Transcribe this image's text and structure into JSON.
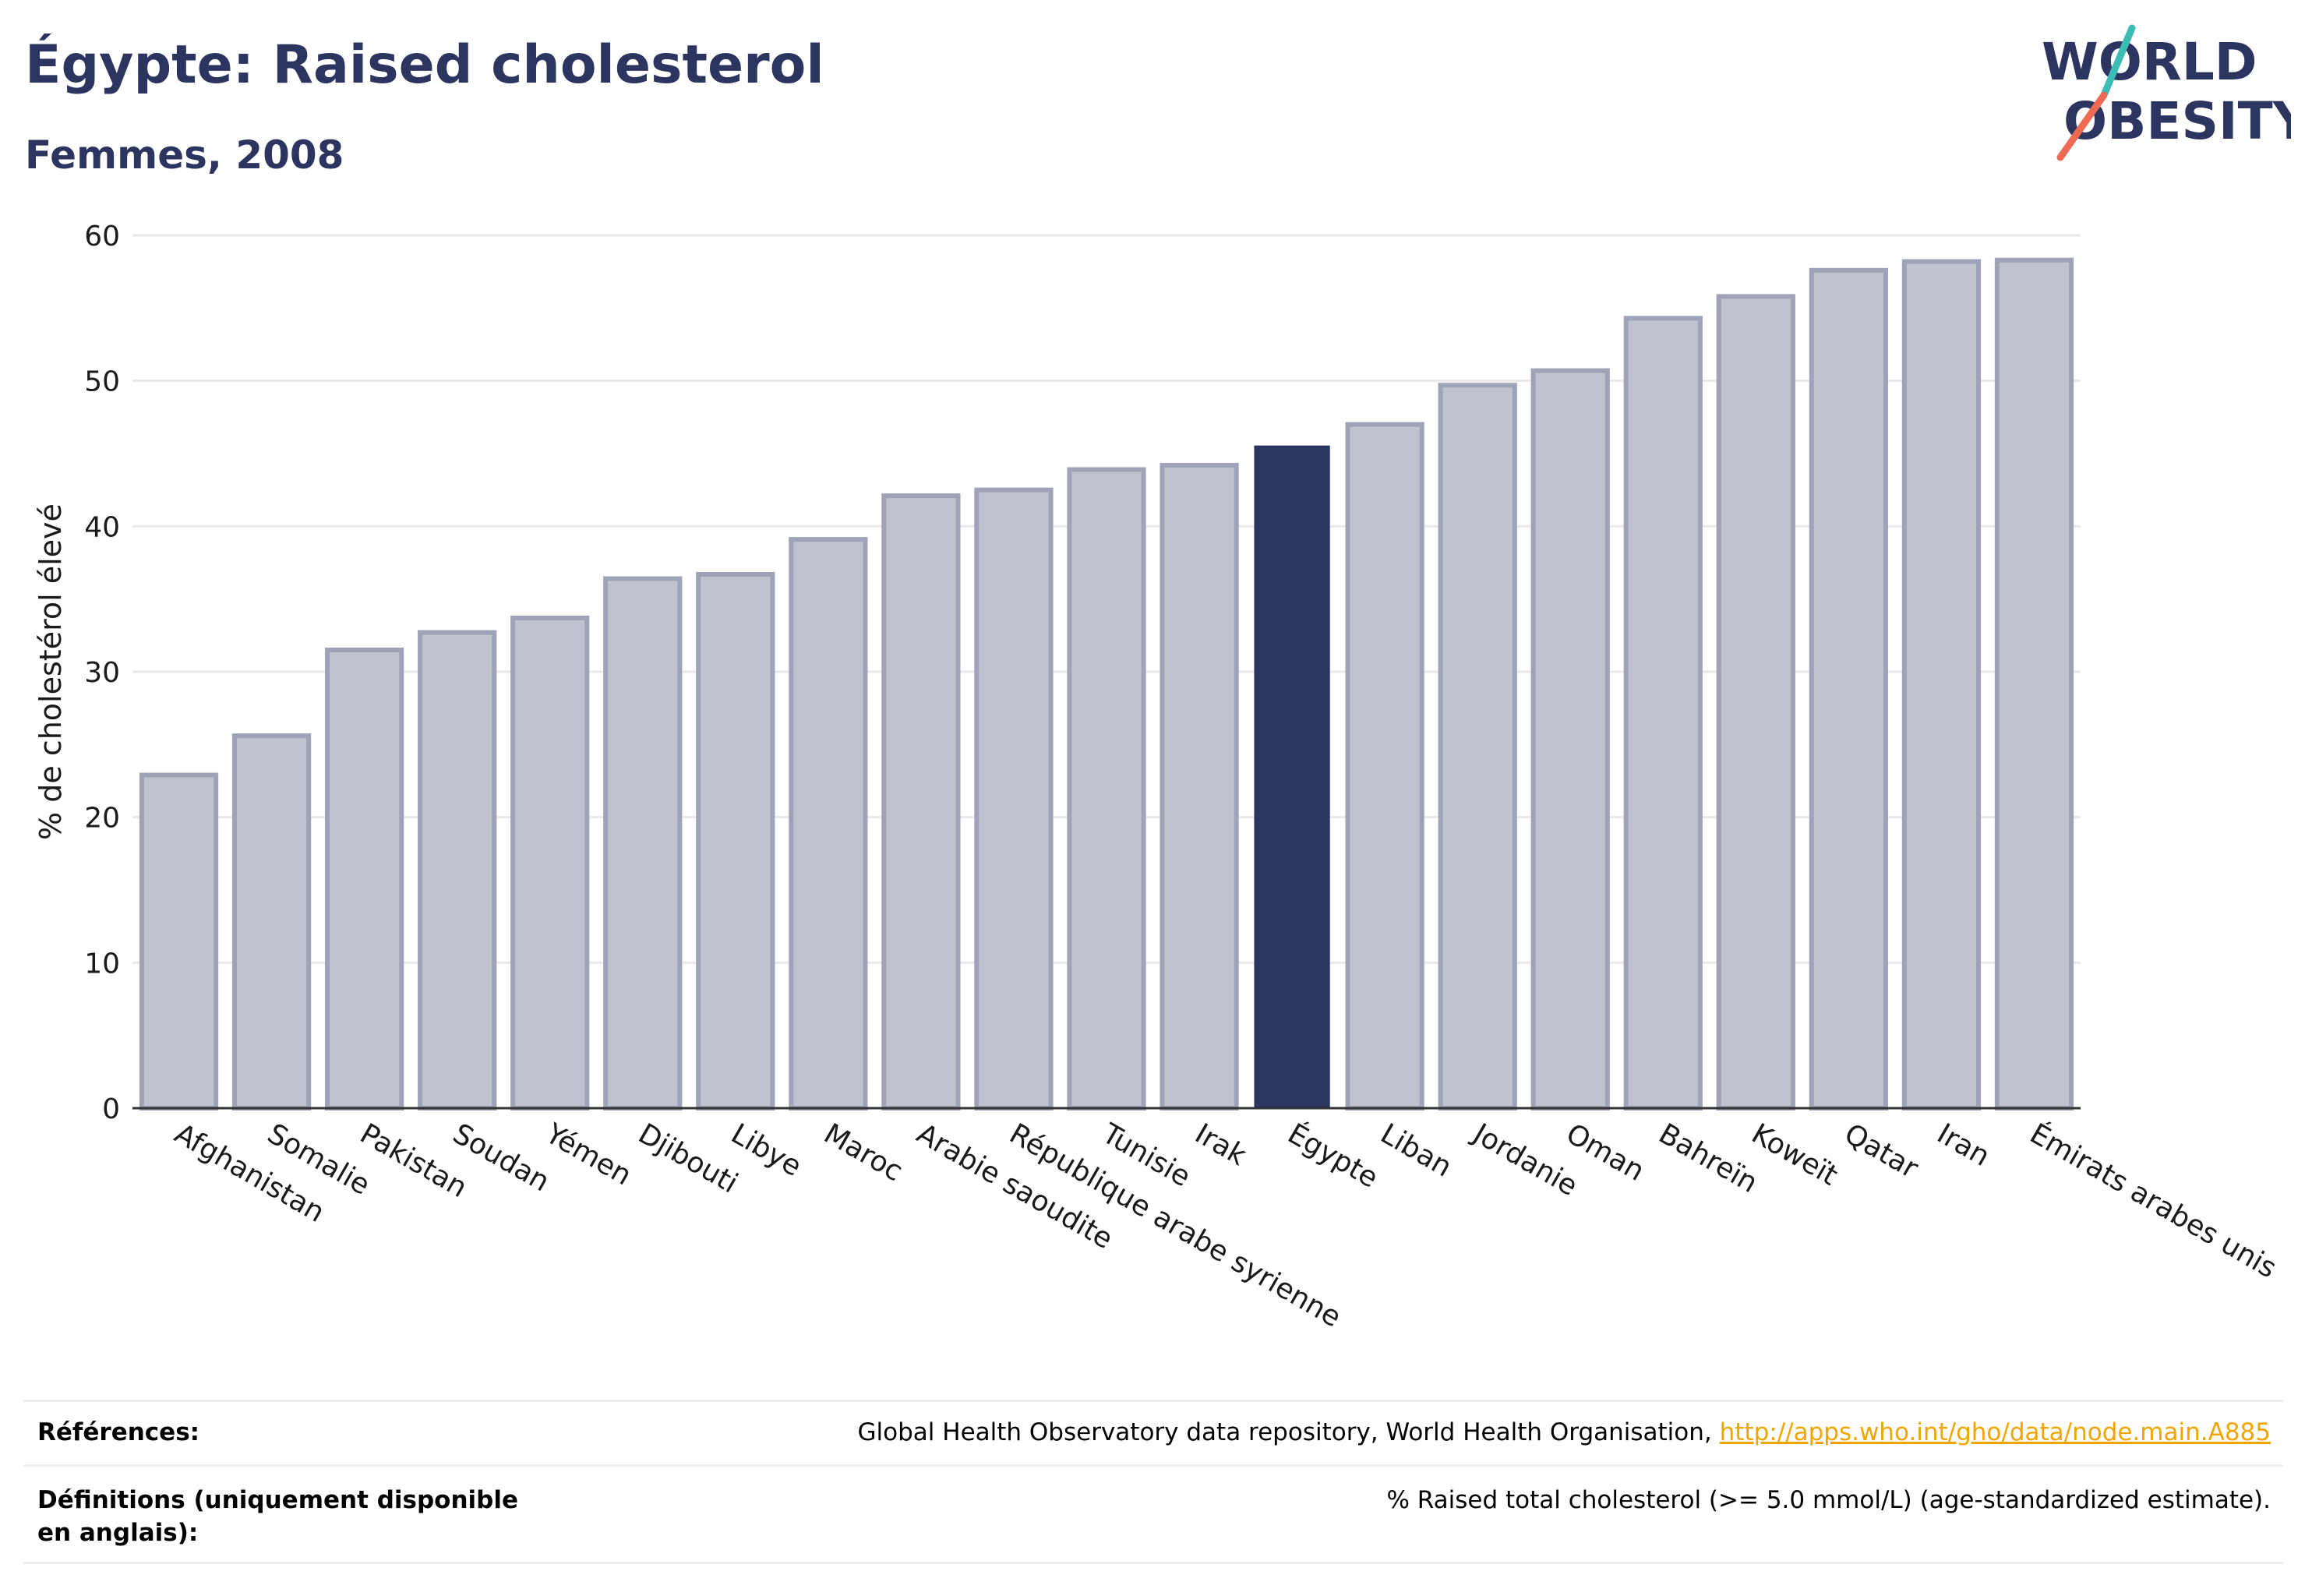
{
  "title": "Égypte: Raised cholesterol",
  "subtitle": "Femmes, 2008",
  "logo": {
    "line1": "WORLD",
    "line2": "OBESITY"
  },
  "colors": {
    "title": "#2b3560",
    "highlight_bar": "#2b3560",
    "bar_fill": "#bfc2cf",
    "bar_stroke": "#9ea3b8",
    "link": "#f0a500",
    "grid": "#e8e8ee",
    "logo_teal": "#3bbcb5",
    "logo_coral": "#ee6a55"
  },
  "chart_data": {
    "type": "bar",
    "ylabel": "% de cholestérol élevé",
    "xlabel": "",
    "ylim": [
      0,
      60
    ],
    "yticks": [
      0,
      10,
      20,
      30,
      40,
      50,
      60
    ],
    "grid": true,
    "highlight": "Égypte",
    "categories": [
      "Afghanistan",
      "Somalie",
      "Pakistan",
      "Soudan",
      "Yémen",
      "Djibouti",
      "Libye",
      "Maroc",
      "Arabie saoudite",
      "République arabe syrienne",
      "Tunisie",
      "Irak",
      "Égypte",
      "Liban",
      "Jordanie",
      "Oman",
      "Bahreïn",
      "Koweït",
      "Qatar",
      "Iran",
      "Émirats arabes unis"
    ],
    "values": [
      22.9,
      25.6,
      31.5,
      32.7,
      33.7,
      36.4,
      36.7,
      39.1,
      42.1,
      42.5,
      43.9,
      44.2,
      45.5,
      47.0,
      49.7,
      50.7,
      54.3,
      55.8,
      57.6,
      58.2,
      58.3
    ]
  },
  "references": {
    "label": "Références:",
    "text": "Global Health Observatory data repository, World Health Organisation, ",
    "link": "http://apps.who.int/gho/data/node.main.A885"
  },
  "definitions": {
    "label": "Définitions (uniquement disponible en anglais):",
    "text": "% Raised total cholesterol (>= 5.0 mmol/L) (age-standardized estimate)."
  }
}
